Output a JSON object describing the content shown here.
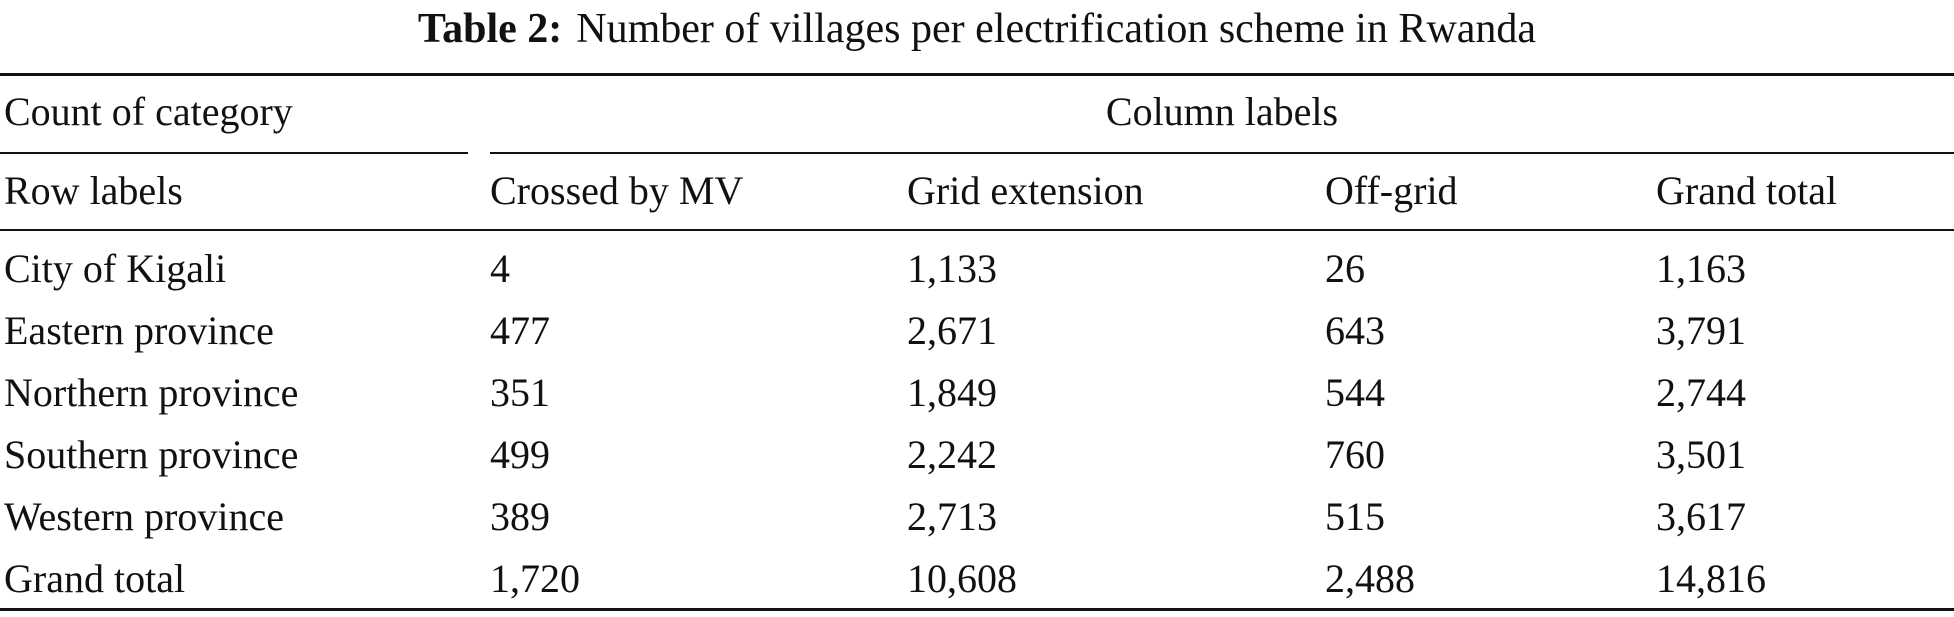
{
  "caption": {
    "label": "Table 2:",
    "text": "Number of villages per electrification scheme in Rwanda"
  },
  "header": {
    "corner": "Count of category",
    "group": "Column labels",
    "row_labels_header": "Row labels",
    "columns": [
      "Crossed by MV",
      "Grid extension",
      "Off-grid",
      "Grand total"
    ]
  },
  "rows": [
    {
      "label": "City of Kigali",
      "values": [
        "4",
        "1,133",
        "26",
        "1,163"
      ]
    },
    {
      "label": "Eastern province",
      "values": [
        "477",
        "2,671",
        "643",
        "3,791"
      ]
    },
    {
      "label": "Northern province",
      "values": [
        "351",
        "1,849",
        "544",
        "2,744"
      ]
    },
    {
      "label": "Southern province",
      "values": [
        "499",
        "2,242",
        "760",
        "3,501"
      ]
    },
    {
      "label": "Western province",
      "values": [
        "389",
        "2,713",
        "515",
        "3,617"
      ]
    },
    {
      "label": "Grand total",
      "values": [
        "1,720",
        "10,608",
        "2,488",
        "14,816"
      ]
    }
  ]
}
